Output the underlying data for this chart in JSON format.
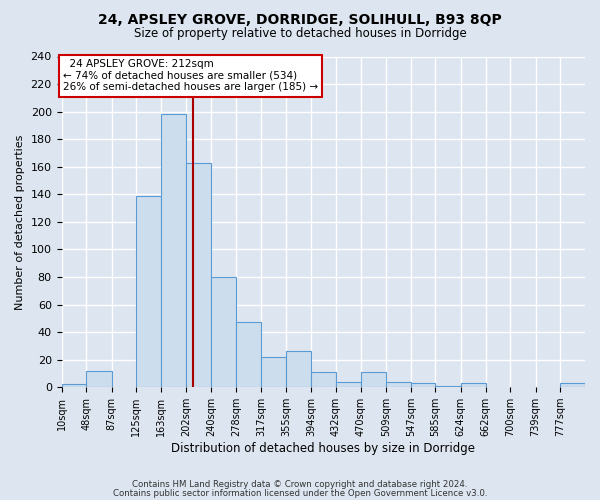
{
  "title": "24, APSLEY GROVE, DORRIDGE, SOLIHULL, B93 8QP",
  "subtitle": "Size of property relative to detached houses in Dorridge",
  "xlabel": "Distribution of detached houses by size in Dorridge",
  "ylabel": "Number of detached properties",
  "bin_labels": [
    "10sqm",
    "48sqm",
    "87sqm",
    "125sqm",
    "163sqm",
    "202sqm",
    "240sqm",
    "278sqm",
    "317sqm",
    "355sqm",
    "394sqm",
    "432sqm",
    "470sqm",
    "509sqm",
    "547sqm",
    "585sqm",
    "624sqm",
    "662sqm",
    "700sqm",
    "739sqm",
    "777sqm"
  ],
  "bin_edges": [
    10,
    48,
    87,
    125,
    163,
    202,
    240,
    278,
    317,
    355,
    394,
    432,
    470,
    509,
    547,
    585,
    624,
    662,
    700,
    739,
    777,
    815
  ],
  "bar_heights": [
    2,
    12,
    0,
    139,
    198,
    163,
    80,
    47,
    22,
    26,
    11,
    4,
    11,
    4,
    3,
    1,
    3,
    0,
    0,
    0,
    3
  ],
  "bar_color": "#ccdded",
  "bar_edge_color": "#5b9bd5",
  "property_size": 212,
  "red_line_color": "#aa0000",
  "annotation_text": "  24 APSLEY GROVE: 212sqm\n← 74% of detached houses are smaller (534)\n26% of semi-detached houses are larger (185) →",
  "annotation_box_color": "#ffffff",
  "annotation_box_edge": "#cc0000",
  "background_color": "#dde6f0",
  "axes_background": "#dde6f0",
  "grid_color": "#ffffff",
  "footer_line1": "Contains HM Land Registry data © Crown copyright and database right 2024.",
  "footer_line2": "Contains public sector information licensed under the Open Government Licence v3.0.",
  "ylim": [
    0,
    240
  ],
  "yticks": [
    0,
    20,
    40,
    60,
    80,
    100,
    120,
    140,
    160,
    180,
    200,
    220,
    240
  ]
}
